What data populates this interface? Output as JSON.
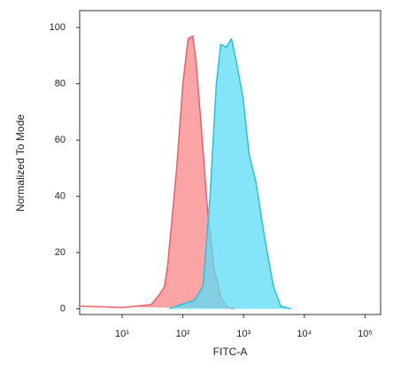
{
  "chart_data": {
    "type": "area",
    "log_x": true,
    "x_label": "FITC-A",
    "y_label": "Normalized To Mode",
    "xlim": [
      2,
      180000
    ],
    "ylim": [
      -2,
      106
    ],
    "xticks": [
      {
        "value": 10,
        "label": "10¹"
      },
      {
        "value": 100,
        "label": "10²"
      },
      {
        "value": 1000,
        "label": "10³"
      },
      {
        "value": 10000,
        "label": "10⁴"
      },
      {
        "value": 100000,
        "label": "10⁵"
      }
    ],
    "yticks": [
      0,
      20,
      40,
      60,
      80,
      100
    ],
    "series": [
      {
        "color": "#e8606a",
        "fill": "#f99a9c",
        "x": [
          2,
          10,
          30,
          41,
          50,
          56,
          79,
          100,
          122,
          145,
          165,
          200,
          255,
          325,
          420,
          550,
          700
        ],
        "values": [
          1,
          0.5,
          1.5,
          5,
          8,
          15,
          50,
          80,
          96,
          97,
          88,
          65,
          35,
          15,
          4,
          0.5,
          0
        ]
      },
      {
        "color": "#2cbfdc",
        "fill": "#5cdcf5",
        "x": [
          60,
          79,
          154,
          215,
          280,
          355,
          420,
          515,
          630,
          760,
          980,
          1230,
          1600,
          2230,
          3100,
          4070,
          6000
        ],
        "values": [
          0,
          1,
          3,
          8,
          40,
          80,
          94,
          93,
          96,
          88,
          75,
          55,
          45,
          25,
          8,
          1,
          0
        ]
      }
    ]
  }
}
